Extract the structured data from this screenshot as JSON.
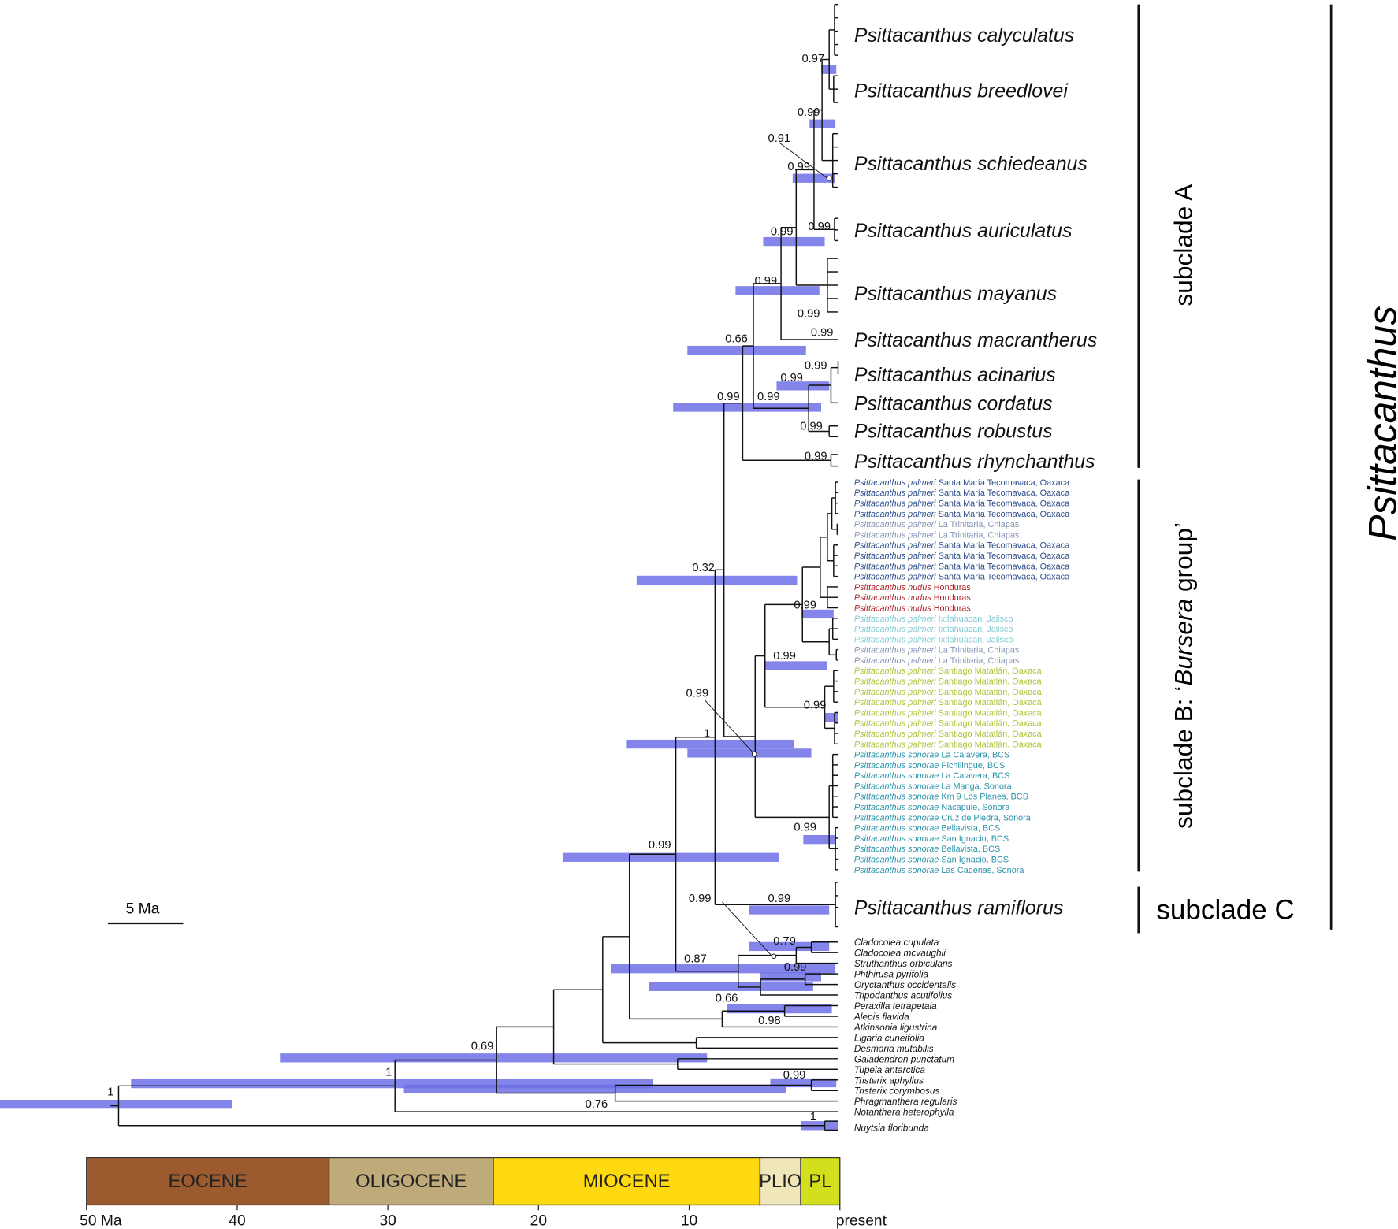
{
  "clade_labels": {
    "genus": "Psittacanthus",
    "subclade_a": "subclade A",
    "subclade_b_prefix": "subclade B: ‘",
    "subclade_b_italic": "Bursera",
    "subclade_b_suffix": " group’",
    "subclade_c": "subclade C"
  },
  "subclade_a_tips": [
    "Psittacanthus calyculatus",
    "Psittacanthus breedlovei",
    "Psittacanthus schiedeanus",
    "Psittacanthus auriculatus",
    "Psittacanthus mayanus",
    "Psittacanthus macrantherus",
    "Psittacanthus acinarius",
    "Psittacanthus cordatus",
    "Psittacanthus robustus",
    "Psittacanthus rhynchanthus"
  ],
  "subclade_b_tips": [
    {
      "taxon": "Psittacanthus palmeri",
      "locality": "Santa María Tecomavaca, Oaxaca",
      "color": "#2b4c8c"
    },
    {
      "taxon": "Psittacanthus palmeri",
      "locality": "Santa María Tecomavaca, Oaxaca",
      "color": "#2b4c8c"
    },
    {
      "taxon": "Psittacanthus palmeri",
      "locality": "Santa María Tecomavaca, Oaxaca",
      "color": "#2b4c8c"
    },
    {
      "taxon": "Psittacanthus palmeri",
      "locality": "Santa María Tecomavaca, Oaxaca",
      "color": "#2b4c8c"
    },
    {
      "taxon": "Psittacanthus palmeri",
      "locality": "La Trinitaria, Chiapas",
      "color": "#8494b4"
    },
    {
      "taxon": "Psittacanthus palmeri",
      "locality": "La Trinitaria, Chiapas",
      "color": "#8494b4"
    },
    {
      "taxon": "Psittacanthus palmeri",
      "locality": "Santa María Tecomavaca, Oaxaca",
      "color": "#2b4c8c"
    },
    {
      "taxon": "Psittacanthus palmeri",
      "locality": "Santa María Tecomavaca, Oaxaca",
      "color": "#2b4c8c"
    },
    {
      "taxon": "Psittacanthus palmeri",
      "locality": "Santa María Tecomavaca, Oaxaca",
      "color": "#2b4c8c"
    },
    {
      "taxon": "Psittacanthus palmeri",
      "locality": "Santa María Tecomavaca, Oaxaca",
      "color": "#2b4c8c"
    },
    {
      "taxon": "Psittacanthus nudus",
      "locality": "Honduras",
      "color": "#b3222a"
    },
    {
      "taxon": "Psittacanthus nudus",
      "locality": "Honduras",
      "color": "#b3222a"
    },
    {
      "taxon": "Psittacanthus nudus",
      "locality": "Honduras",
      "color": "#b3222a"
    },
    {
      "taxon": "Psittacanthus palmeri",
      "locality": "Ixtlahuacan, Jalisco",
      "color": "#86cbd6"
    },
    {
      "taxon": "Psittacanthus palmeri",
      "locality": "Ixtlahuacan, Jalisco",
      "color": "#86cbd6"
    },
    {
      "taxon": "Psittacanthus palmeri",
      "locality": "Ixtlahuacan, Jalisco",
      "color": "#86cbd6"
    },
    {
      "taxon": "Psittacanthus palmeri",
      "locality": "La Trinitaria, Chiapas",
      "color": "#8494b4"
    },
    {
      "taxon": "Psittacanthus palmeri",
      "locality": "La Trinitaria, Chiapas",
      "color": "#8494b4"
    },
    {
      "taxon": "Psittacanthus palmeri",
      "locality": "Santiago Matatlán, Oaxaca",
      "color": "#b3c23a"
    },
    {
      "taxon": "Psittacanthus palmeri",
      "locality": "Santiago Matatlán, Oaxaca",
      "color": "#b3c23a"
    },
    {
      "taxon": "Psittacanthus palmeri",
      "locality": "Santiago Matatlán, Oaxaca",
      "color": "#b3c23a"
    },
    {
      "taxon": "Psittacanthus palmeri",
      "locality": "Santiago Matatlán, Oaxaca",
      "color": "#b3c23a"
    },
    {
      "taxon": "Psittacanthus palmeri",
      "locality": "Santiago Matatlán, Oaxaca",
      "color": "#b3c23a"
    },
    {
      "taxon": "Psittacanthus palmeri",
      "locality": "Santiago Matatlán, Oaxaca",
      "color": "#b3c23a"
    },
    {
      "taxon": "Psittacanthus palmeri",
      "locality": "Santiago Matatlán, Oaxaca",
      "color": "#b3c23a"
    },
    {
      "taxon": "Psittacanthus palmeri",
      "locality": "Santiago Matatlán, Oaxaca",
      "color": "#b3c23a"
    },
    {
      "taxon": "Psittacanthus sonorae",
      "locality": "La Calavera, BCS",
      "color": "#2b93aa"
    },
    {
      "taxon": "Psittacanthus sonorae",
      "locality": "Pichilingue, BCS",
      "color": "#2b93aa"
    },
    {
      "taxon": "Psittacanthus sonorae",
      "locality": "La Calavera, BCS",
      "color": "#2b93aa"
    },
    {
      "taxon": "Psittacanthus sonorae",
      "locality": "La Manga, Sonora",
      "color": "#2b93aa"
    },
    {
      "taxon": "Psittacanthus sonorae",
      "locality": "Km 9 Los Planes, BCS",
      "color": "#2b93aa"
    },
    {
      "taxon": "Psittacanthus sonorae",
      "locality": "Nacapule, Sonora",
      "color": "#2b93aa"
    },
    {
      "taxon": "Psittacanthus sonorae",
      "locality": "Cruz de Piedra, Sonora",
      "color": "#2b93aa"
    },
    {
      "taxon": "Psittacanthus sonorae",
      "locality": "Bellavista, BCS",
      "color": "#2b93aa"
    },
    {
      "taxon": "Psittacanthus sonorae",
      "locality": "San Ignacio, BCS",
      "color": "#2b93aa"
    },
    {
      "taxon": "Psittacanthus sonorae",
      "locality": "Bellavista, BCS",
      "color": "#2b93aa"
    },
    {
      "taxon": "Psittacanthus sonorae",
      "locality": "San Ignacio, BCS",
      "color": "#2b93aa"
    },
    {
      "taxon": "Psittacanthus sonorae",
      "locality": "Las Cadenas, Sonora",
      "color": "#2b93aa"
    }
  ],
  "subclade_c_tip": "Psittacanthus ramiflorus",
  "outgroup_tips": [
    "Cladocolea cupulata",
    "Cladocolea mcvaughii",
    "Struthanthus orbicularis",
    "Phthirusa pyrifolia",
    "Oryctanthus occidentalis",
    "Tripodanthus acutifolius",
    "Peraxilla tetrapetala",
    "Alepis flavida",
    "Atkinsonia ligustrina",
    "Ligaria cuneifolia",
    "Desmaria mutabilis",
    "Gaiadendron punctatum",
    "Tupeia antarctica",
    "Tristerix aphyllus",
    "Tristerix corymbosus",
    "Phragmanthera regularis",
    "Notanthera heterophylla"
  ],
  "root_tip": "Nuytsia floribunda",
  "support_values": [
    "0.97",
    "0.99",
    "0.91",
    "0.99",
    "0.99",
    "0.99",
    "0.99",
    "0.99",
    "0.99",
    "0.66",
    "0.99",
    "0.99",
    "0.99",
    "0.99",
    "0.99",
    "0.99",
    "0.32",
    "0.99",
    "0.99",
    "0.99",
    "0.99",
    "1",
    "0.99",
    "0.99",
    "0.99",
    "0.99",
    "0.79",
    "0.87",
    "0.99",
    "0.66",
    "0.98",
    "0.69",
    "1",
    "0.99",
    "1",
    "0.76",
    "1"
  ],
  "scale_bar": {
    "label": "5 Ma",
    "length_ma": 5
  },
  "hpd_bar_color": "#6d70e6",
  "epochs": [
    {
      "name": "EOCENE",
      "from_ma": 50,
      "to_ma": 33.9,
      "color": "#9c5b2f"
    },
    {
      "name": "OLIGOCENE",
      "from_ma": 33.9,
      "to_ma": 23,
      "color": "#bfaa7a"
    },
    {
      "name": "MIOCENE",
      "from_ma": 23,
      "to_ma": 5.3,
      "color": "#ffd90f"
    },
    {
      "name": "PLIO",
      "from_ma": 5.3,
      "to_ma": 2.6,
      "color": "#efe6b9"
    },
    {
      "name": "PL",
      "from_ma": 2.6,
      "to_ma": 0,
      "color": "#d3df1c"
    }
  ],
  "time_axis": [
    {
      "ma": 50,
      "label": "50 Ma"
    },
    {
      "ma": 40,
      "label": "40"
    },
    {
      "ma": 30,
      "label": "30"
    },
    {
      "ma": 20,
      "label": "20"
    },
    {
      "ma": 10,
      "label": "10"
    },
    {
      "ma": 0,
      "label": "present"
    }
  ]
}
